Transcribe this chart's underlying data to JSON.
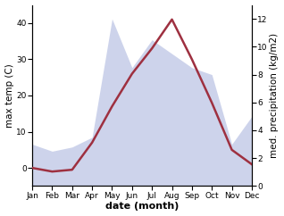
{
  "months": [
    "Jan",
    "Feb",
    "Mar",
    "Apr",
    "May",
    "Jun",
    "Jul",
    "Aug",
    "Sep",
    "Oct",
    "Nov",
    "Dec"
  ],
  "temperature": [
    0,
    -1,
    -0.5,
    7,
    17,
    26,
    33,
    41,
    30,
    18,
    5,
    1
  ],
  "precipitation": [
    3.0,
    2.5,
    2.8,
    3.5,
    12.0,
    8.5,
    10.5,
    9.5,
    8.5,
    8.0,
    3.0,
    5.0
  ],
  "temp_color": "#9e3040",
  "precip_fill_color": "#c5cce8",
  "precip_fill_alpha": 0.85,
  "ylabel_left": "max temp (C)",
  "ylabel_right": "med. precipitation (kg/m2)",
  "xlabel": "date (month)",
  "ylim_left": [
    -5,
    45
  ],
  "ylim_right": [
    0,
    13
  ],
  "yticks_left": [
    0,
    10,
    20,
    30,
    40
  ],
  "yticks_right": [
    0,
    2,
    4,
    6,
    8,
    10,
    12
  ],
  "background_color": "#ffffff",
  "temp_linewidth": 1.8,
  "xlabel_fontsize": 8,
  "ylabel_fontsize": 7.5,
  "tick_fontsize": 6.5
}
